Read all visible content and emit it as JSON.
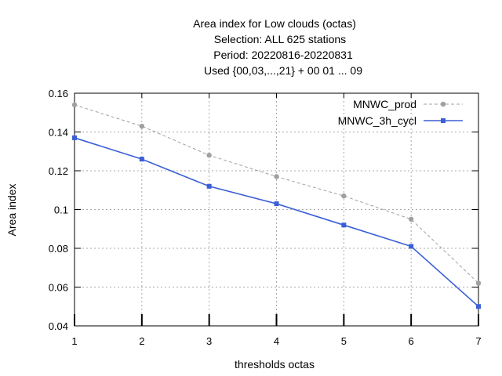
{
  "chart_data": {
    "type": "line",
    "title_lines": [
      "Area index  for Low clouds (octas)",
      "Selection: ALL    625 stations",
      "Period: 20220816-20220831",
      "Used {00,03,...,21} + 00 01 ... 09"
    ],
    "xlabel": "thresholds octas",
    "ylabel": "Area index",
    "x": [
      1,
      2,
      3,
      4,
      5,
      6,
      7
    ],
    "xlim": [
      1,
      7
    ],
    "ylim": [
      0.04,
      0.16
    ],
    "yticks": [
      0.04,
      0.06,
      0.08,
      0.1,
      0.12,
      0.14,
      0.16
    ],
    "ytick_labels": [
      "0.04",
      "0.06",
      "0.08",
      "0.1",
      "0.12",
      "0.14",
      "0.16"
    ],
    "xtick_labels": [
      "1",
      "2",
      "3",
      "4",
      "5",
      "6",
      "7"
    ],
    "grid": true,
    "legend_position": "top-right",
    "series": [
      {
        "name": "MNWC_prod",
        "values": [
          0.154,
          0.143,
          0.128,
          0.117,
          0.107,
          0.095,
          0.062
        ],
        "color": "#a0a0a0",
        "dashed": true
      },
      {
        "name": "MNWC_3h_cycl",
        "values": [
          0.137,
          0.126,
          0.112,
          0.103,
          0.092,
          0.081,
          0.05
        ],
        "color": "#3b5fd6",
        "dashed": false
      }
    ]
  }
}
